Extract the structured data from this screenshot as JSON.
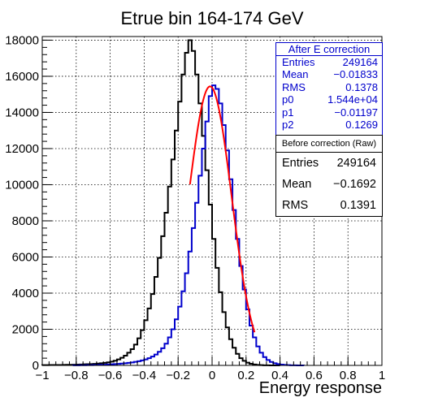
{
  "chart_data": {
    "type": "histogram",
    "title": "Etrue bin 164-174 GeV",
    "xlabel": "Energy response",
    "ylabel": "",
    "xlim": [
      -1,
      1
    ],
    "ylim": [
      0,
      18200
    ],
    "x_ticks": [
      "-1",
      "-0.8",
      "-0.6",
      "-0.4",
      "-0.2",
      "0",
      "0.2",
      "0.4",
      "0.6",
      "0.8",
      "1"
    ],
    "y_ticks": [
      "0",
      "2000",
      "4000",
      "6000",
      "8000",
      "10000",
      "12000",
      "14000",
      "16000",
      "18000"
    ],
    "grid": true,
    "bin_width": 0.02,
    "series": [
      {
        "name": "Before correction (Raw)",
        "color": "#000000",
        "bins": [
          {
            "x": -0.99,
            "y": 15
          },
          {
            "x": -0.97,
            "y": 15
          },
          {
            "x": -0.95,
            "y": 20
          },
          {
            "x": -0.93,
            "y": 20
          },
          {
            "x": -0.91,
            "y": 25
          },
          {
            "x": -0.89,
            "y": 25
          },
          {
            "x": -0.87,
            "y": 30
          },
          {
            "x": -0.85,
            "y": 35
          },
          {
            "x": -0.83,
            "y": 35
          },
          {
            "x": -0.81,
            "y": 40
          },
          {
            "x": -0.79,
            "y": 45
          },
          {
            "x": -0.77,
            "y": 50
          },
          {
            "x": -0.75,
            "y": 60
          },
          {
            "x": -0.73,
            "y": 65
          },
          {
            "x": -0.71,
            "y": 75
          },
          {
            "x": -0.69,
            "y": 85
          },
          {
            "x": -0.67,
            "y": 100
          },
          {
            "x": -0.65,
            "y": 120
          },
          {
            "x": -0.63,
            "y": 140
          },
          {
            "x": -0.61,
            "y": 170
          },
          {
            "x": -0.59,
            "y": 210
          },
          {
            "x": -0.57,
            "y": 260
          },
          {
            "x": -0.55,
            "y": 330
          },
          {
            "x": -0.53,
            "y": 420
          },
          {
            "x": -0.51,
            "y": 540
          },
          {
            "x": -0.49,
            "y": 700
          },
          {
            "x": -0.47,
            "y": 900
          },
          {
            "x": -0.45,
            "y": 1150
          },
          {
            "x": -0.43,
            "y": 1500
          },
          {
            "x": -0.41,
            "y": 1950
          },
          {
            "x": -0.39,
            "y": 2500
          },
          {
            "x": -0.37,
            "y": 3150
          },
          {
            "x": -0.35,
            "y": 3950
          },
          {
            "x": -0.33,
            "y": 4900
          },
          {
            "x": -0.31,
            "y": 5950
          },
          {
            "x": -0.29,
            "y": 7150
          },
          {
            "x": -0.27,
            "y": 8450
          },
          {
            "x": -0.25,
            "y": 9900
          },
          {
            "x": -0.23,
            "y": 11400
          },
          {
            "x": -0.21,
            "y": 13000
          },
          {
            "x": -0.19,
            "y": 14600
          },
          {
            "x": -0.17,
            "y": 16100
          },
          {
            "x": -0.15,
            "y": 17300
          },
          {
            "x": -0.13,
            "y": 18000
          },
          {
            "x": -0.11,
            "y": 17400
          },
          {
            "x": -0.09,
            "y": 16100
          },
          {
            "x": -0.07,
            "y": 14500
          },
          {
            "x": -0.05,
            "y": 12700
          },
          {
            "x": -0.03,
            "y": 10800
          },
          {
            "x": -0.01,
            "y": 8900
          },
          {
            "x": 0.01,
            "y": 7000
          },
          {
            "x": 0.03,
            "y": 5400
          },
          {
            "x": 0.05,
            "y": 4050
          },
          {
            "x": 0.07,
            "y": 2950
          },
          {
            "x": 0.09,
            "y": 2100
          },
          {
            "x": 0.11,
            "y": 1450
          },
          {
            "x": 0.13,
            "y": 980
          },
          {
            "x": 0.15,
            "y": 640
          },
          {
            "x": 0.17,
            "y": 400
          },
          {
            "x": 0.19,
            "y": 250
          },
          {
            "x": 0.21,
            "y": 150
          },
          {
            "x": 0.23,
            "y": 90
          },
          {
            "x": 0.25,
            "y": 50
          },
          {
            "x": 0.27,
            "y": 30
          },
          {
            "x": 0.29,
            "y": 15
          },
          {
            "x": 0.31,
            "y": 8
          },
          {
            "x": 0.33,
            "y": 4
          },
          {
            "x": 0.35,
            "y": 2
          },
          {
            "x": 0.37,
            "y": 1
          },
          {
            "x": 0.39,
            "y": 0
          }
        ]
      },
      {
        "name": "After E correction",
        "color": "#0000cc",
        "bins": [
          {
            "x": -0.81,
            "y": 5
          },
          {
            "x": -0.79,
            "y": 8
          },
          {
            "x": -0.77,
            "y": 10
          },
          {
            "x": -0.75,
            "y": 12
          },
          {
            "x": -0.73,
            "y": 15
          },
          {
            "x": -0.71,
            "y": 18
          },
          {
            "x": -0.69,
            "y": 22
          },
          {
            "x": -0.67,
            "y": 28
          },
          {
            "x": -0.65,
            "y": 35
          },
          {
            "x": -0.63,
            "y": 42
          },
          {
            "x": -0.61,
            "y": 50
          },
          {
            "x": -0.59,
            "y": 60
          },
          {
            "x": -0.57,
            "y": 72
          },
          {
            "x": -0.55,
            "y": 85
          },
          {
            "x": -0.53,
            "y": 100
          },
          {
            "x": -0.51,
            "y": 120
          },
          {
            "x": -0.49,
            "y": 140
          },
          {
            "x": -0.47,
            "y": 165
          },
          {
            "x": -0.45,
            "y": 195
          },
          {
            "x": -0.43,
            "y": 230
          },
          {
            "x": -0.41,
            "y": 275
          },
          {
            "x": -0.39,
            "y": 330
          },
          {
            "x": -0.37,
            "y": 400
          },
          {
            "x": -0.35,
            "y": 490
          },
          {
            "x": -0.33,
            "y": 600
          },
          {
            "x": -0.31,
            "y": 750
          },
          {
            "x": -0.29,
            "y": 950
          },
          {
            "x": -0.27,
            "y": 1200
          },
          {
            "x": -0.25,
            "y": 1550
          },
          {
            "x": -0.23,
            "y": 2000
          },
          {
            "x": -0.21,
            "y": 2550
          },
          {
            "x": -0.19,
            "y": 3250
          },
          {
            "x": -0.17,
            "y": 4100
          },
          {
            "x": -0.15,
            "y": 5100
          },
          {
            "x": -0.13,
            "y": 6300
          },
          {
            "x": -0.11,
            "y": 7600
          },
          {
            "x": -0.09,
            "y": 9000
          },
          {
            "x": -0.07,
            "y": 10500
          },
          {
            "x": -0.05,
            "y": 12000
          },
          {
            "x": -0.03,
            "y": 13500
          },
          {
            "x": -0.01,
            "y": 14900
          },
          {
            "x": 0.01,
            "y": 15500
          },
          {
            "x": 0.03,
            "y": 15300
          },
          {
            "x": 0.05,
            "y": 14500
          },
          {
            "x": 0.07,
            "y": 13300
          },
          {
            "x": 0.09,
            "y": 11900
          },
          {
            "x": 0.11,
            "y": 10300
          },
          {
            "x": 0.13,
            "y": 8600
          },
          {
            "x": 0.15,
            "y": 7000
          },
          {
            "x": 0.17,
            "y": 5500
          },
          {
            "x": 0.19,
            "y": 4200
          },
          {
            "x": 0.21,
            "y": 3100
          },
          {
            "x": 0.23,
            "y": 2200
          },
          {
            "x": 0.25,
            "y": 1550
          },
          {
            "x": 0.27,
            "y": 1050
          },
          {
            "x": 0.29,
            "y": 700
          },
          {
            "x": 0.31,
            "y": 460
          },
          {
            "x": 0.33,
            "y": 300
          },
          {
            "x": 0.35,
            "y": 190
          },
          {
            "x": 0.37,
            "y": 120
          },
          {
            "x": 0.39,
            "y": 75
          },
          {
            "x": 0.41,
            "y": 45
          },
          {
            "x": 0.43,
            "y": 28
          },
          {
            "x": 0.45,
            "y": 15
          },
          {
            "x": 0.47,
            "y": 8
          },
          {
            "x": 0.49,
            "y": 4
          },
          {
            "x": 0.51,
            "y": 2
          },
          {
            "x": 0.53,
            "y": 1
          }
        ]
      }
    ],
    "fit": {
      "type": "gaus",
      "color": "#ff0000",
      "p0": 15440,
      "p1": -0.01197,
      "p2": 0.1269,
      "xrange": [
        -0.13,
        0.25
      ]
    }
  },
  "stats_after": {
    "title": "After E correction",
    "rows": [
      {
        "label": "Entries",
        "value": "249164"
      },
      {
        "label": "Mean",
        "value": "−0.01833"
      },
      {
        "label": "RMS",
        "value": "0.1378"
      },
      {
        "label": "p0",
        "value": "1.544e+04"
      },
      {
        "label": "p1",
        "value": "−0.01197"
      },
      {
        "label": "p2",
        "value": "0.1269"
      }
    ]
  },
  "stats_before": {
    "title": "Before correction (Raw)",
    "rows": [
      {
        "label": "Entries",
        "value": "249164"
      },
      {
        "label": "Mean",
        "value": "−0.1692"
      },
      {
        "label": "RMS",
        "value": "0.1391"
      }
    ]
  }
}
